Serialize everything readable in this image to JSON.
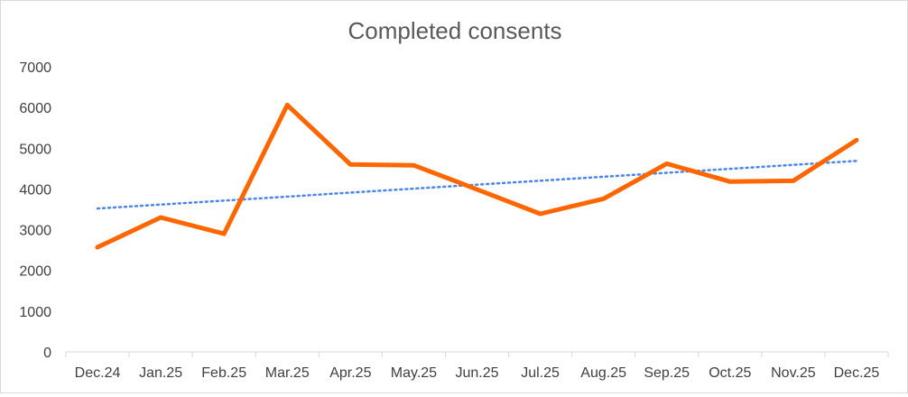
{
  "chart_data": {
    "type": "line",
    "title": "Completed consents",
    "categories": [
      "Dec.24",
      "Jan.25",
      "Feb.25",
      "Mar.25",
      "Apr.25",
      "May.25",
      "Jun.25",
      "Jul.25",
      "Aug.25",
      "Sep.25",
      "Oct.25",
      "Nov.25",
      "Dec.25"
    ],
    "series": [
      {
        "values": [
          2570,
          3300,
          2900,
          6060,
          4600,
          4580,
          3990,
          3390,
          3760,
          4620,
          4180,
          4200,
          5200
        ],
        "color": "#ff6600",
        "style": "solid"
      },
      {
        "values": [
          3520,
          3618,
          3715,
          3813,
          3910,
          4008,
          4105,
          4203,
          4300,
          4398,
          4495,
          4593,
          4690
        ],
        "color": "#4a86e8",
        "style": "dotted",
        "kind": "linear trendline"
      }
    ],
    "ylim": [
      0,
      7000
    ],
    "yticks": [
      0,
      1000,
      2000,
      3000,
      4000,
      5000,
      6000,
      7000
    ],
    "grid": false,
    "legend": "none"
  }
}
